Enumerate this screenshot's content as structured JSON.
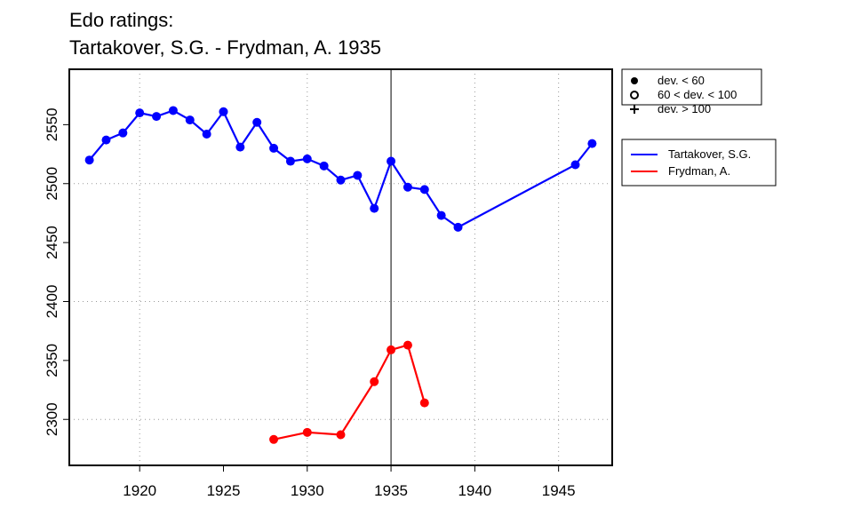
{
  "chart_data": {
    "type": "line",
    "title": [
      "Edo ratings:",
      "Tartakover, S.G. - Frydman, A. 1935"
    ],
    "series": [
      {
        "name": "Tartakover, S.G.",
        "color": "#0000ff",
        "x": [
          1917,
          1918,
          1919,
          1920,
          1921,
          1922,
          1923,
          1924,
          1925,
          1926,
          1927,
          1928,
          1929,
          1930,
          1931,
          1932,
          1933,
          1934,
          1935,
          1936,
          1937,
          1938,
          1939,
          1946,
          1947
        ],
        "values": [
          2520,
          2537,
          2543,
          2560,
          2557,
          2562,
          2554,
          2542,
          2561,
          2531,
          2552,
          2530,
          2519,
          2521,
          2515,
          2503,
          2507,
          2479,
          2519,
          2497,
          2495,
          2473,
          2463,
          2516,
          2534
        ]
      },
      {
        "name": "Frydman, A.",
        "color": "#ff0000",
        "x": [
          1928,
          1930,
          1932,
          1934,
          1935,
          1936,
          1937
        ],
        "values": [
          2283,
          2289,
          2287,
          2332,
          2359,
          2363,
          2314
        ]
      }
    ],
    "symbol_legend": [
      "dev. < 60",
      "60 < dev. < 100",
      "dev. > 100"
    ],
    "xlim": [
      1915.8,
      1948.2
    ],
    "xticks": [
      1920,
      1925,
      1930,
      1935,
      1940,
      1945
    ],
    "ylim": [
      2261,
      2597
    ],
    "yticks": [
      2300,
      2350,
      2400,
      2450,
      2500,
      2550
    ],
    "xgrid": [
      1920,
      1930,
      1940,
      1945
    ],
    "ygrid": [
      2300,
      2400,
      2500
    ],
    "vline": 1935
  }
}
